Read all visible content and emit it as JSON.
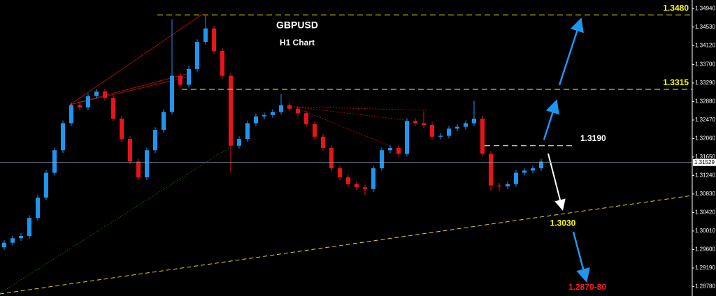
{
  "chart_data": {
    "type": "candlestick",
    "title": "GBPUSD",
    "subtitle": "H1 Chart",
    "up_color": "#1e96f0",
    "down_color": "#e8141a",
    "ylim": [
      1.2857,
      1.3513
    ],
    "yticks": [
      {
        "value": 1.3494,
        "label": "1.34940"
      },
      {
        "value": 1.3453,
        "label": "1.34530"
      },
      {
        "value": 1.3412,
        "label": "1.34120"
      },
      {
        "value": 1.337,
        "label": "1.33700"
      },
      {
        "value": 1.3329,
        "label": "1.33290"
      },
      {
        "value": 1.3288,
        "label": "1.32880"
      },
      {
        "value": 1.3247,
        "label": "1.32470"
      },
      {
        "value": 1.3206,
        "label": "1.32060"
      },
      {
        "value": 1.3165,
        "label": "1.31650"
      },
      {
        "value": 1.3124,
        "label": "1.31240"
      },
      {
        "value": 1.3083,
        "label": "1.30830"
      },
      {
        "value": 1.3042,
        "label": "1.30420"
      },
      {
        "value": 1.3001,
        "label": "1.30010"
      },
      {
        "value": 1.296,
        "label": "1.29600"
      },
      {
        "value": 1.2919,
        "label": "1.29190"
      },
      {
        "value": 1.2878,
        "label": "1.28780"
      }
    ],
    "open": [
      1.2965,
      1.2975,
      1.2985,
      1.299,
      1.303,
      1.3075,
      1.313,
      1.318,
      1.324,
      1.328,
      1.3275,
      1.33,
      1.331,
      1.3296,
      1.325,
      1.3205,
      1.3155,
      1.312,
      1.318,
      1.3225,
      1.3265,
      1.3345,
      1.3325,
      1.336,
      1.342,
      1.345,
      1.34,
      1.3345,
      1.319,
      1.3205,
      1.324,
      1.3255,
      1.3258,
      1.3265,
      1.328,
      1.3272,
      1.3262,
      1.3238,
      1.321,
      1.3185,
      1.314,
      1.312,
      1.3105,
      1.3098,
      1.3094,
      1.314,
      1.318,
      1.3185,
      1.3172,
      1.3245,
      1.324,
      1.3236,
      1.321,
      1.3212,
      1.3228,
      1.3232,
      1.324,
      1.325,
      1.3172,
      1.3102,
      1.31,
      1.3105,
      1.313,
      1.3135,
      1.314
    ],
    "high": [
      1.2981,
      1.2991,
      1.2996,
      1.3036,
      1.3081,
      1.3136,
      1.3186,
      1.3246,
      1.3286,
      1.3286,
      1.3306,
      1.3316,
      1.3316,
      1.3302,
      1.3256,
      1.3211,
      1.3161,
      1.3186,
      1.3231,
      1.3271,
      1.347,
      1.3351,
      1.3366,
      1.3426,
      1.3478,
      1.3456,
      1.3406,
      1.3351,
      1.3211,
      1.3246,
      1.3261,
      1.3264,
      1.3271,
      1.3305,
      1.3286,
      1.3278,
      1.3268,
      1.3244,
      1.3216,
      1.3191,
      1.3146,
      1.3126,
      1.3111,
      1.3104,
      1.3146,
      1.3186,
      1.3191,
      1.3191,
      1.3251,
      1.3251,
      1.3266,
      1.3242,
      1.3218,
      1.3234,
      1.3238,
      1.3246,
      1.329,
      1.3256,
      1.3178,
      1.3108,
      1.3111,
      1.3136,
      1.3141,
      1.3146,
      1.3161
    ],
    "low": [
      1.2959,
      1.2969,
      1.2979,
      1.2984,
      1.3024,
      1.3069,
      1.3124,
      1.3174,
      1.3234,
      1.3269,
      1.3269,
      1.3294,
      1.329,
      1.3244,
      1.3199,
      1.3149,
      1.3114,
      1.3114,
      1.3174,
      1.3219,
      1.3259,
      1.3319,
      1.3319,
      1.3354,
      1.3414,
      1.3394,
      1.3339,
      1.313,
      1.3184,
      1.3199,
      1.3234,
      1.3249,
      1.3252,
      1.3259,
      1.3266,
      1.3256,
      1.3232,
      1.3204,
      1.3179,
      1.3134,
      1.3114,
      1.3099,
      1.3092,
      1.308,
      1.3088,
      1.3134,
      1.3174,
      1.3166,
      1.3166,
      1.3234,
      1.323,
      1.3204,
      1.3204,
      1.3206,
      1.3222,
      1.3226,
      1.3234,
      1.3166,
      1.309,
      1.309,
      1.3094,
      1.3099,
      1.3124,
      1.3129,
      1.3134
    ],
    "close": [
      1.2975,
      1.2985,
      1.299,
      1.303,
      1.3075,
      1.313,
      1.318,
      1.324,
      1.328,
      1.3275,
      1.33,
      1.331,
      1.3296,
      1.325,
      1.3205,
      1.3155,
      1.312,
      1.318,
      1.3225,
      1.3265,
      1.3345,
      1.3325,
      1.336,
      1.342,
      1.345,
      1.34,
      1.3345,
      1.319,
      1.3205,
      1.324,
      1.3255,
      1.3258,
      1.3265,
      1.328,
      1.3272,
      1.3262,
      1.3238,
      1.321,
      1.3185,
      1.314,
      1.312,
      1.3105,
      1.3098,
      1.3094,
      1.314,
      1.318,
      1.3185,
      1.3172,
      1.3245,
      1.324,
      1.3236,
      1.321,
      1.3212,
      1.3228,
      1.3232,
      1.324,
      1.325,
      1.3172,
      1.3102,
      1.31,
      1.3105,
      1.313,
      1.3135,
      1.314,
      1.3155
    ],
    "current_price": {
      "value": 1.31529,
      "label": "1.31529"
    },
    "levels": [
      {
        "value": 1.348,
        "label": "1.3480",
        "color": "#ffff00"
      },
      {
        "value": 1.3315,
        "label": "1.3315",
        "color": "#ffff00"
      },
      {
        "value": 1.319,
        "label": "1.3190",
        "color": "#ffffff"
      }
    ],
    "target": {
      "value": 1.303,
      "label": "1.3030",
      "color": "#ffff00"
    },
    "final_target": {
      "label": "1.2870-80",
      "color": "#ff1a1a"
    }
  }
}
